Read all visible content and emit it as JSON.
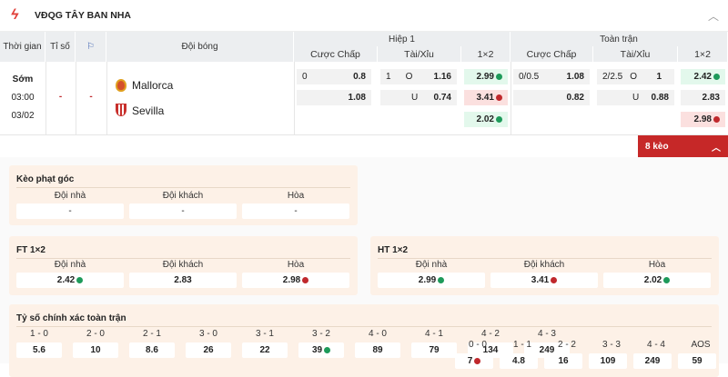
{
  "league": {
    "title": "VĐQG TÂY BAN NHA",
    "logo_icon": "laliga-logo",
    "collapse_icon": "chevron-up-icon"
  },
  "table_header": {
    "time": "Thời gian",
    "score": "Tỉ số",
    "corner_icon": "corner-flag-icon",
    "teams": "Đội bóng",
    "half1": "Hiệp 1",
    "fulltime": "Toàn trận",
    "handicap": "Cược Chấp",
    "overunder": "Tài/Xỉu",
    "x12": "1×2"
  },
  "match": {
    "status": "Sớm",
    "time": "03:00",
    "date": "03/02",
    "score": "-",
    "corners": "-",
    "home": "Mallorca",
    "away": "Sevilla",
    "h1": {
      "hdp_line": "0",
      "hdp_home": "0.8",
      "hdp_away": "1.08",
      "ou_line": "1",
      "ou_o": "O",
      "ou_o_odds": "1.16",
      "ou_u": "U",
      "ou_u_odds": "0.74",
      "x1": "2.99",
      "x2": "3.41",
      "xd": "2.02"
    },
    "ft": {
      "hdp_line": "0/0.5",
      "hdp_home": "1.08",
      "hdp_away": "0.82",
      "ou_line": "2/2.5",
      "ou_o": "O",
      "ou_o_odds": "1",
      "ou_u": "U",
      "ou_u_odds": "0.88",
      "x1": "2.42",
      "x2": "2.83",
      "xd": "2.98"
    }
  },
  "more_button": {
    "label": "8 kèo"
  },
  "corners": {
    "title": "Kèo phạt góc",
    "labels": [
      "Đội nhà",
      "Đội khách",
      "Hòa"
    ],
    "values": [
      "-",
      "-",
      "-"
    ]
  },
  "ft_1x2": {
    "title": "FT 1×2",
    "labels": [
      "Đội nhà",
      "Đội khách",
      "Hòa"
    ],
    "values": [
      "2.42",
      "2.83",
      "2.98"
    ]
  },
  "ht_1x2": {
    "title": "HT 1×2",
    "labels": [
      "Đội nhà",
      "Đội khách",
      "Hòa"
    ],
    "values": [
      "2.99",
      "3.41",
      "2.02"
    ]
  },
  "correct_score": {
    "title": "Tỷ số chính xác toàn trận",
    "home": [
      {
        "s": "1 - 0",
        "v": "5.6"
      },
      {
        "s": "2 - 0",
        "v": "10"
      },
      {
        "s": "2 - 1",
        "v": "8.6"
      },
      {
        "s": "3 - 0",
        "v": "26"
      },
      {
        "s": "3 - 1",
        "v": "22"
      },
      {
        "s": "3 - 2",
        "v": "39"
      },
      {
        "s": "4 - 0",
        "v": "89"
      },
      {
        "s": "4 - 1",
        "v": "79"
      },
      {
        "s": "4 - 2",
        "v": "134"
      },
      {
        "s": "4 - 3",
        "v": "249"
      }
    ],
    "draw": [
      {
        "s": "0 - 0",
        "v": "7"
      },
      {
        "s": "1 - 1",
        "v": "4.8"
      },
      {
        "s": "2 - 2",
        "v": "16"
      },
      {
        "s": "3 - 3",
        "v": "109"
      },
      {
        "s": "4 - 4",
        "v": "249"
      },
      {
        "s": "AOS",
        "v": "59"
      }
    ]
  }
}
